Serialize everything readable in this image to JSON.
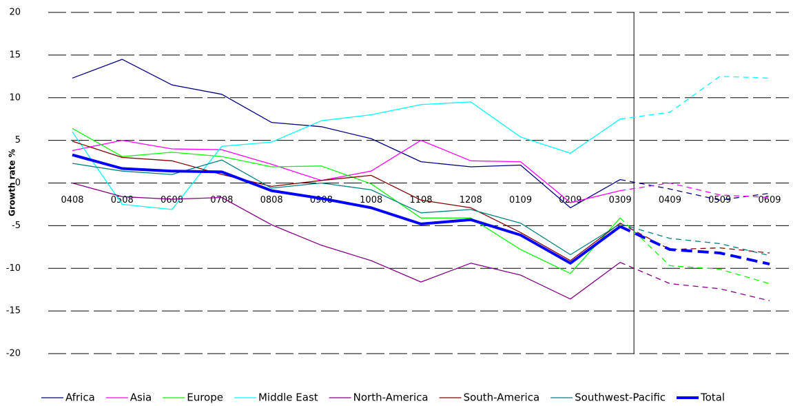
{
  "chart_data": {
    "type": "line",
    "y_label": "Growth rate %",
    "categories": [
      "0408",
      "0508",
      "0608",
      "0708",
      "0808",
      "0908",
      "1008",
      "1108",
      "1208",
      "0109",
      "0209",
      "0309",
      "0409",
      "0509",
      "0609"
    ],
    "forecast_start": "0309",
    "ylim": [
      -20,
      20
    ],
    "yticks": [
      -20,
      -15,
      -10,
      -5,
      0,
      5,
      10,
      15,
      20
    ],
    "grid": true,
    "series": [
      {
        "name": "Africa",
        "color": "#000080",
        "values": [
          12.3,
          14.5,
          11.5,
          10.4,
          7.1,
          6.6,
          5.2,
          2.5,
          1.9,
          2.1,
          -2.9,
          0.4,
          -0.7,
          -2.0,
          -1.2
        ]
      },
      {
        "name": "Asia",
        "color": "#ff00ff",
        "values": [
          3.8,
          5.0,
          4.0,
          3.9,
          2.2,
          0.3,
          1.4,
          5.0,
          2.6,
          2.5,
          -2.3,
          -0.9,
          0.0,
          -1.4,
          -1.7
        ]
      },
      {
        "name": "Europe",
        "color": "#00ff00",
        "values": [
          6.4,
          3.1,
          3.6,
          3.1,
          1.9,
          2.0,
          -0.1,
          -4.1,
          -4.1,
          -7.8,
          -10.6,
          -4.1,
          -9.7,
          -10.1,
          -11.8
        ]
      },
      {
        "name": "Middle East",
        "color": "#00ffff",
        "values": [
          6.0,
          -2.5,
          -3.1,
          4.3,
          4.8,
          7.3,
          8.0,
          9.2,
          9.5,
          5.4,
          3.5,
          7.5,
          8.3,
          12.5,
          12.3
        ]
      },
      {
        "name": "North-America",
        "color": "#800080",
        "values": [
          0.0,
          -1.6,
          -1.9,
          -1.7,
          -4.9,
          -7.3,
          -9.1,
          -11.6,
          -9.4,
          -10.8,
          -13.6,
          -9.3,
          -11.8,
          -12.4,
          -13.8
        ]
      },
      {
        "name": "South-America",
        "color": "#800000",
        "values": [
          4.9,
          3.0,
          2.6,
          1.0,
          -0.4,
          0.3,
          0.9,
          -2.0,
          -2.9,
          -5.8,
          -9.1,
          -4.7,
          -7.8,
          -7.6,
          -8.2
        ]
      },
      {
        "name": "Southwest-Pacific",
        "color": "#008080",
        "values": [
          2.3,
          1.4,
          1.0,
          2.7,
          -0.6,
          0.0,
          -0.8,
          -3.5,
          -3.1,
          -4.7,
          -8.4,
          -4.8,
          -6.5,
          -7.1,
          -8.5
        ]
      },
      {
        "name": "Total",
        "color": "#0000ff",
        "width": 4,
        "values": [
          3.3,
          1.7,
          1.4,
          1.3,
          -0.9,
          -1.8,
          -2.9,
          -4.8,
          -4.3,
          -6.1,
          -9.4,
          -5.1,
          -7.8,
          -8.2,
          -9.5
        ]
      }
    ]
  }
}
